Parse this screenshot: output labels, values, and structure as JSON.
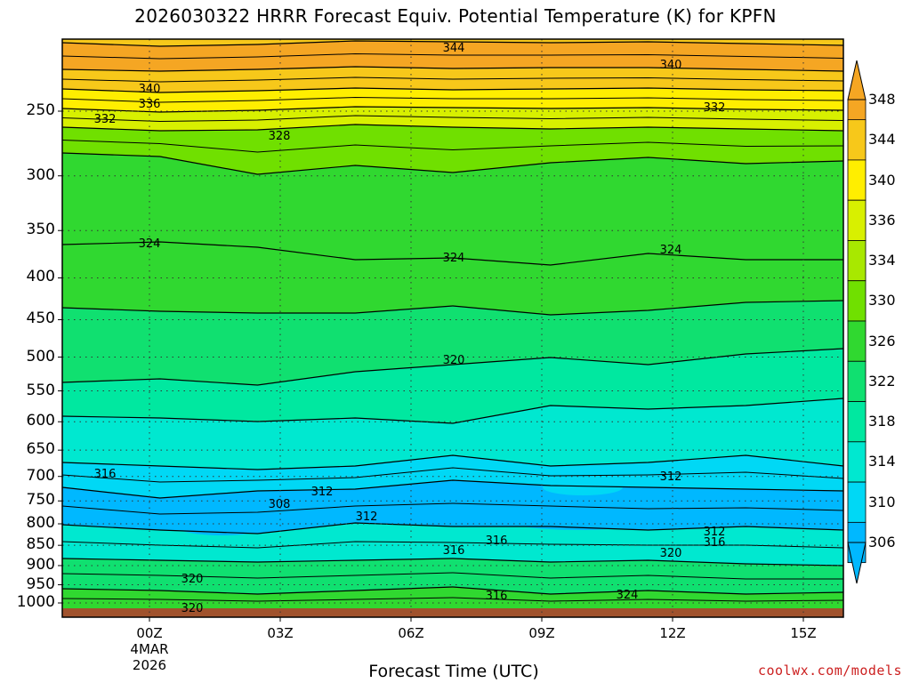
{
  "chart_data": {
    "type": "contour",
    "title": "2026030322 HRRR Forecast Equiv. Potential Temperature (K) for KPFN",
    "xlabel": "Forecast Time (UTC)",
    "ylabel": "",
    "y_scale": "log-pressure, inverted",
    "ylim_hPa": [
      1000,
      200
    ],
    "y_ticks": [
      "250",
      "300",
      "350",
      "400",
      "450",
      "500",
      "550",
      "600",
      "650",
      "700",
      "750",
      "800",
      "850",
      "900",
      "950",
      "1000"
    ],
    "x_ticks": [
      "00Z",
      "03Z",
      "06Z",
      "09Z",
      "12Z",
      "15Z"
    ],
    "x_tick_sub": [
      "4MAR",
      "2026"
    ],
    "colorbar": {
      "ticks": [
        "348",
        "344",
        "340",
        "336",
        "334",
        "330",
        "326",
        "322",
        "318",
        "314",
        "310",
        "306"
      ],
      "colors": [
        "#f5a623",
        "#f7c81a",
        "#ffee00",
        "#d8f000",
        "#a8e800",
        "#70e000",
        "#30d830",
        "#10e070",
        "#00e8a0",
        "#00e8d0",
        "#00d8f5",
        "#00b8ff"
      ]
    },
    "contour_labels": [
      "344",
      "340",
      "340",
      "336",
      "332",
      "332",
      "328",
      "324",
      "324",
      "324",
      "320",
      "316",
      "312",
      "312",
      "312",
      "312",
      "308",
      "316",
      "316",
      "316",
      "320",
      "320",
      "316",
      "324",
      "320"
    ],
    "series": [
      {
        "values": [
          345,
          344,
          345,
          344,
          344,
          344,
          345
        ]
      },
      {
        "values": [
          340,
          340,
          340,
          339,
          340,
          340,
          340
        ]
      },
      {
        "values": [
          336,
          336,
          336,
          336,
          336,
          336,
          336
        ]
      },
      {
        "values": [
          332,
          332,
          332,
          332,
          332,
          332,
          332
        ]
      },
      {
        "values": [
          328,
          328,
          328,
          328,
          328,
          328,
          328
        ]
      },
      {
        "values": [
          324,
          324,
          324,
          324,
          324,
          324,
          324
        ]
      },
      {
        "values": [
          322,
          322,
          322,
          322,
          322,
          322,
          322
        ]
      },
      {
        "values": [
          320,
          320,
          320,
          320,
          320,
          320,
          320
        ]
      },
      {
        "values": [
          318,
          318,
          318,
          318,
          318,
          318,
          318
        ]
      },
      {
        "values": [
          316,
          316,
          316,
          316,
          316,
          316,
          316
        ]
      },
      {
        "values": [
          312,
          312,
          312,
          312,
          312,
          312,
          312
        ]
      },
      {
        "values": [
          308,
          307,
          310,
          307,
          307,
          310,
          311
        ]
      },
      {
        "values": [
          316,
          316,
          316,
          316,
          316,
          316,
          316
        ]
      },
      {
        "values": [
          320,
          320,
          320,
          320,
          320,
          320,
          320
        ]
      },
      {
        "values": [
          324,
          324,
          324,
          324,
          324,
          324,
          324
        ]
      }
    ],
    "grid": true,
    "surface_fill": "#a0522d"
  },
  "texts": {
    "credit": "coolwx.com/models"
  }
}
